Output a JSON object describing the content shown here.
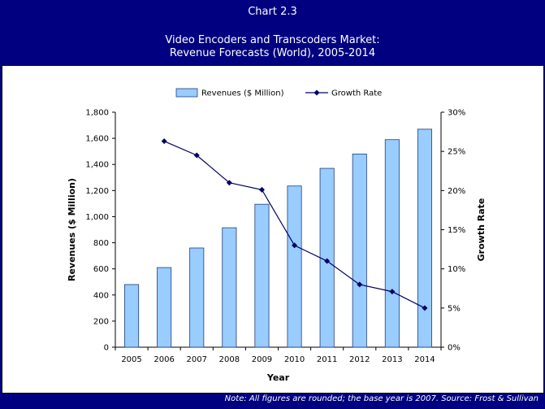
{
  "header": {
    "chart_label": "Chart 2.3",
    "title_line1": "Video Encoders and Transcoders Market:",
    "title_line2": "Revenue Forecasts (World), 2005-2014"
  },
  "note": "Note: All figures are rounded; the base year is 2007. Source: Frost & Sullivan",
  "colors": {
    "frame": "#000080",
    "bar_fill": "#99CCFF",
    "bar_stroke": "#1F3D7A",
    "line": "#000066"
  },
  "chart_data": {
    "type": "bar",
    "categories": [
      "2005",
      "2006",
      "2007",
      "2008",
      "2009",
      "2010",
      "2011",
      "2012",
      "2013",
      "2014"
    ],
    "series": [
      {
        "name": "Revenues ($ Million)",
        "type": "bar",
        "axis": "left",
        "values": [
          480,
          610,
          760,
          915,
          1095,
          1235,
          1370,
          1480,
          1590,
          1670
        ]
      },
      {
        "name": "Growth Rate",
        "type": "line",
        "axis": "right",
        "values": [
          null,
          26.3,
          24.5,
          21.0,
          20.1,
          13.0,
          11.0,
          8.0,
          7.1,
          5.0
        ]
      }
    ],
    "xlabel": "Year",
    "ylabel": "Revenues ($ Million)",
    "y2label": "Growth Rate",
    "ylim": [
      0,
      1800
    ],
    "y2lim": [
      0,
      30
    ],
    "yticks": [
      "0",
      "200",
      "400",
      "600",
      "800",
      "1,000",
      "1,200",
      "1,400",
      "1,600",
      "1,800"
    ],
    "y2ticks": [
      "0%",
      "5%",
      "10%",
      "15%",
      "20%",
      "25%",
      "30%"
    ],
    "legend": "top-center",
    "grid": false
  }
}
